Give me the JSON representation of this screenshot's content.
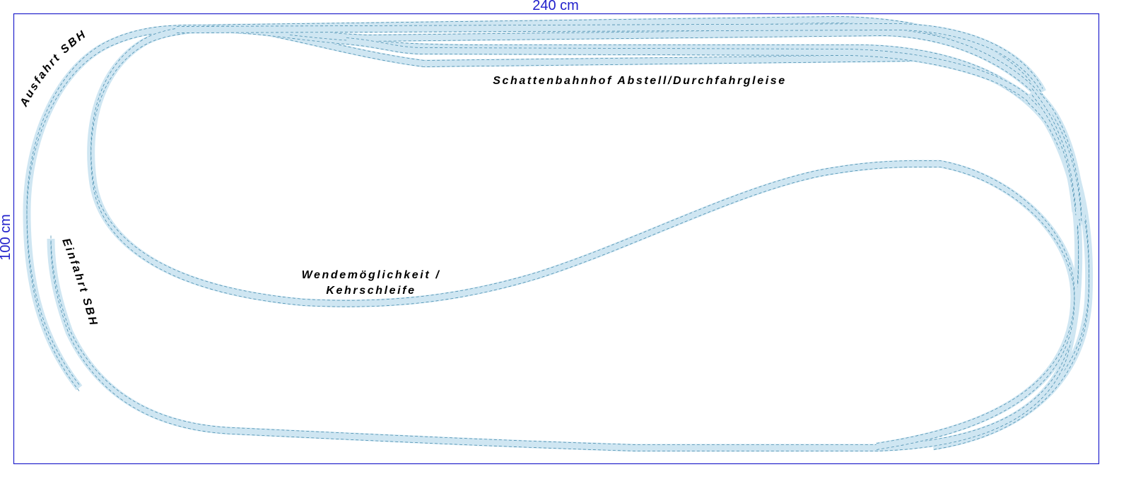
{
  "dimensions": {
    "width_label": "240 cm",
    "height_label": "100 cm"
  },
  "labels": {
    "exit": "Ausfahrt SBH",
    "entry": "Einfahrt SBH",
    "yard": "Schattenbahnhof Abstell/Durchfahrgleise",
    "turn_line1": "Wendemöglichkeit /",
    "turn_line2": "Kehrschleife"
  },
  "colors": {
    "board_border": "#2222cc",
    "track_fill": "#cfe6f2",
    "track_edge": "#4a8fb0",
    "text": "#000000"
  }
}
